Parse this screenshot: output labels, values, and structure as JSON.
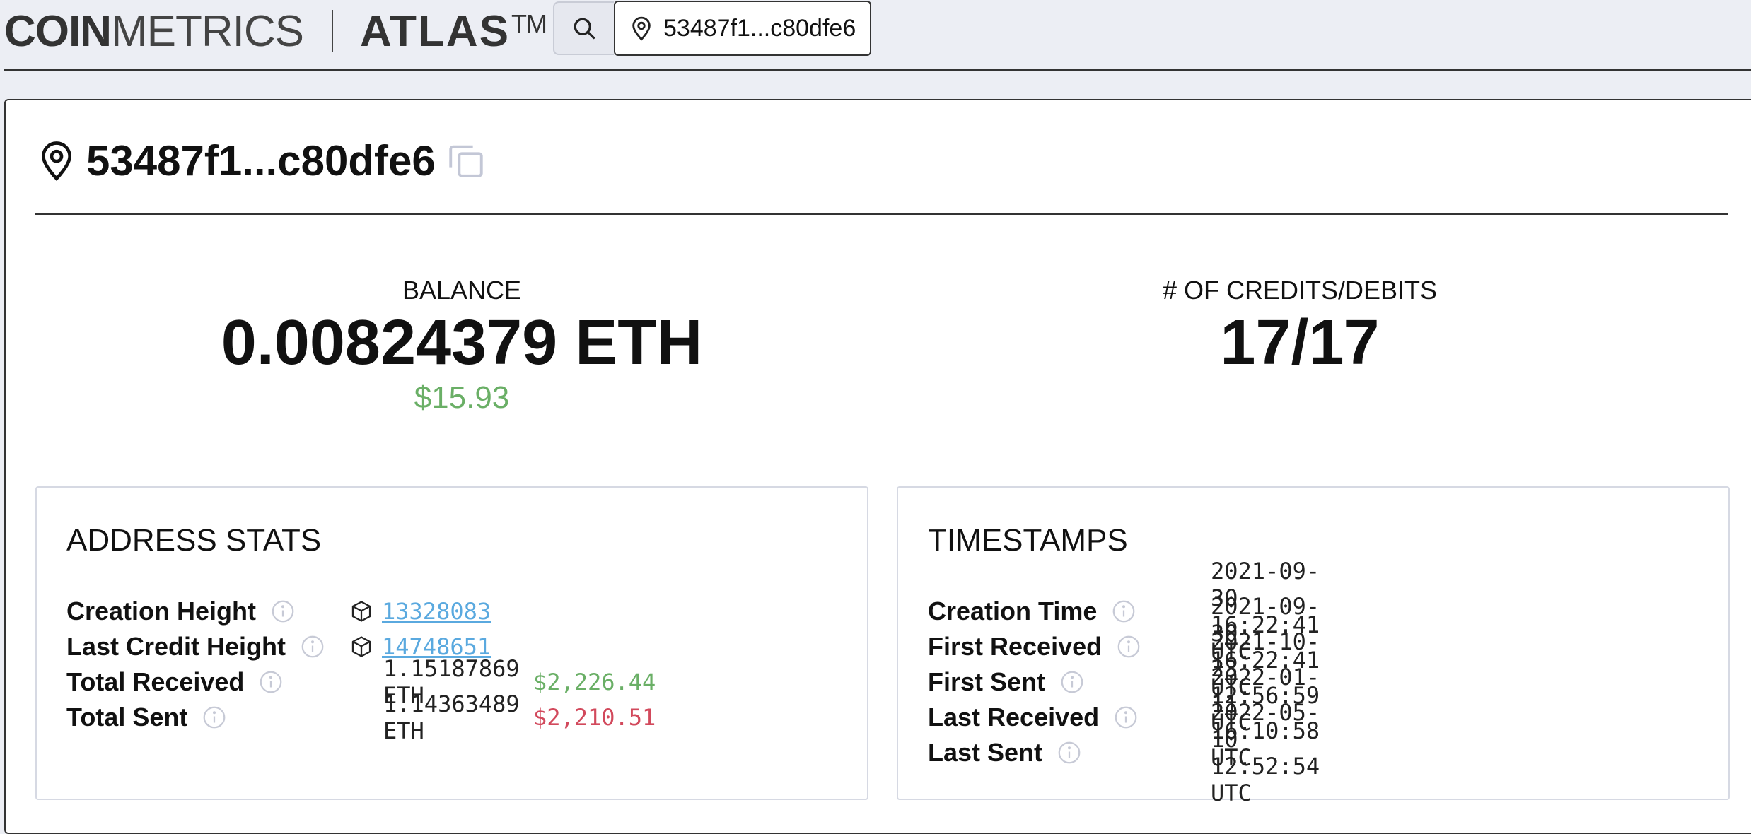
{
  "header": {
    "logo_coin": "COIN",
    "logo_metrics": "METRICS",
    "logo_atlas": "ATLAS",
    "logo_tm": "TM",
    "address_short": "53487f1...c80dfe6"
  },
  "title": {
    "address": "53487f1...c80dfe6"
  },
  "balance": {
    "label": "BALANCE",
    "value": "0.00824379 ETH",
    "usd": "$15.93"
  },
  "credits": {
    "label": "# OF CREDITS/DEBITS",
    "value": "17/17"
  },
  "address_stats": {
    "title": "ADDRESS STATS",
    "rows": [
      {
        "label": "Creation Height",
        "value": "13328083"
      },
      {
        "label": "Last Credit Height",
        "value": "14748651"
      },
      {
        "label": "Total Received",
        "value": "1.15187869 ETH",
        "usd": "$2,226.44"
      },
      {
        "label": "Total Sent",
        "value": "1.14363489 ETH",
        "usd": "$2,210.51"
      }
    ]
  },
  "timestamps": {
    "title": "TIMESTAMPS",
    "rows": [
      {
        "label": "Creation Time",
        "value": "2021-09-30 16:22:41 UTC"
      },
      {
        "label": "First Received",
        "value": "2021-09-30 16:22:41 UTC"
      },
      {
        "label": "First Sent",
        "value": "2021-10-23 12:56:59 UTC"
      },
      {
        "label": "Last Received",
        "value": "2022-01-11 16:10:58 UTC"
      },
      {
        "label": "Last Sent",
        "value": "2022-05-10 12:52:54 UTC"
      }
    ]
  },
  "colors": {
    "usd_positive": "#6aaf66",
    "usd_negative": "#d2495c",
    "link": "#5aa9df"
  },
  "icons": [
    "search-icon",
    "location-pin-icon",
    "copy-icon",
    "info-icon",
    "block-cube-icon"
  ]
}
